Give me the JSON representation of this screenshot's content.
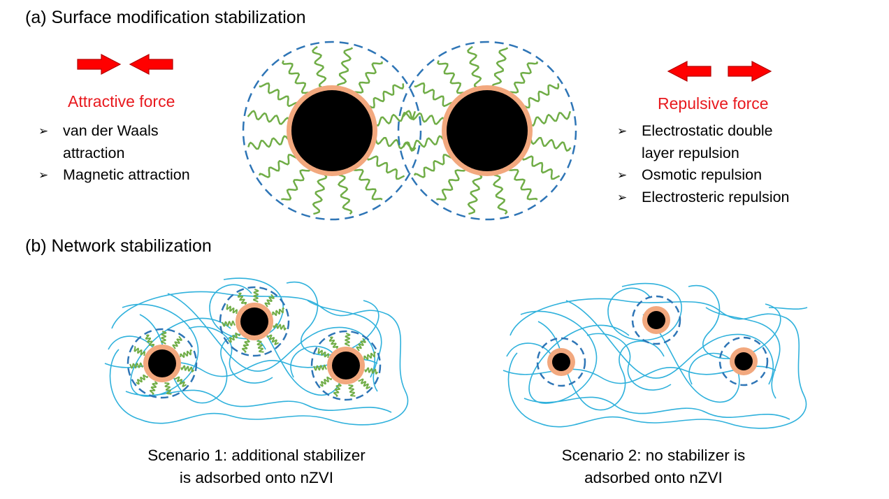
{
  "section_a": {
    "title": "(a) Surface modification stabilization"
  },
  "attractive": {
    "title": "Attractive force",
    "items": [
      {
        "lines": [
          "van der Waals",
          "attraction"
        ]
      },
      {
        "lines": [
          "Magnetic attraction"
        ]
      }
    ]
  },
  "repulsive": {
    "title": "Repulsive force",
    "items": [
      {
        "lines": [
          "Electrostatic double",
          "layer repulsion"
        ]
      },
      {
        "lines": [
          "Osmotic repulsion"
        ]
      },
      {
        "lines": [
          "Electrosteric repulsion"
        ]
      }
    ]
  },
  "section_b": {
    "title": "(b) Network stabilization"
  },
  "scenario1": {
    "line1": "Scenario 1: additional stabilizer",
    "line2": "is adsorbed onto nZVI"
  },
  "scenario2": {
    "line1": "Scenario 2: no stabilizer is",
    "line2": "adsorbed onto nZVI"
  },
  "colors": {
    "arrow_red": "#ff0000",
    "arrow_outline": "#b40000",
    "label_red": "#e8191e",
    "core": "#000000",
    "shell": "#f2a87e",
    "polymer": "#70ad47",
    "boundary": "#2e75b6",
    "network": "#2fb1dc"
  }
}
